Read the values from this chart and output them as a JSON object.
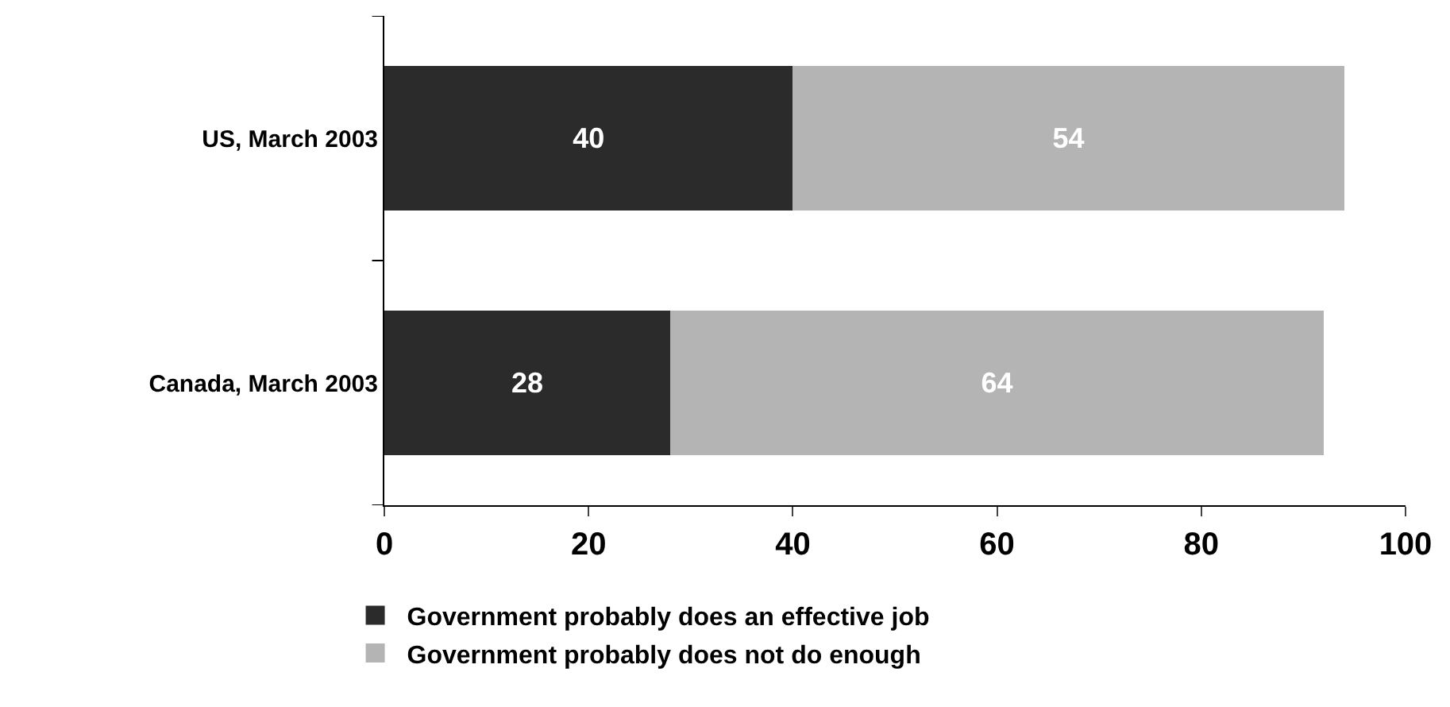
{
  "chart_data": {
    "type": "bar",
    "orientation": "horizontal",
    "stacked": true,
    "categories": [
      "US, March 2003",
      "Canada, March 2003"
    ],
    "series": [
      {
        "name": "Government probably does an effective job",
        "color": "#2b2b2b",
        "values": [
          40,
          28
        ]
      },
      {
        "name": "Government probably does not do enough",
        "color": "#b4b4b4",
        "values": [
          54,
          64
        ]
      }
    ],
    "xlim": [
      0,
      100
    ],
    "xticks": [
      0,
      20,
      40,
      60,
      80,
      100
    ],
    "data_labels": true,
    "legend": "bottom"
  }
}
